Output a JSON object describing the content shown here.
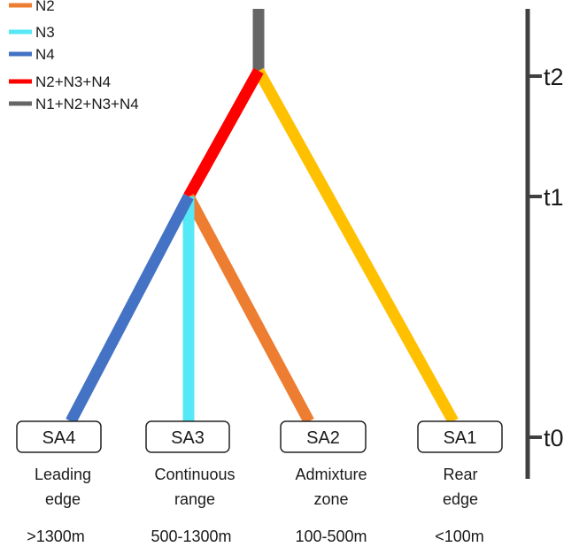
{
  "colors": {
    "N1": "#ffc000",
    "N2": "#ed7d31",
    "N3": "#55e8f7",
    "N4": "#4472c4",
    "N2_N3_N4": "#ff0000",
    "N1_N2_N3_N4": "#666666",
    "axis": "#404040"
  },
  "legend": [
    {
      "label": "N2",
      "color": "#ed7d31"
    },
    {
      "label": "N3",
      "color": "#55e8f7"
    },
    {
      "label": "N4",
      "color": "#4472c4"
    },
    {
      "label": "N2+N3+N4",
      "color": "#ff0000"
    },
    {
      "label": "N1+N2+N3+N4",
      "color": "#666666"
    }
  ],
  "time_axis": {
    "ticks": [
      "t2",
      "t1",
      "t0"
    ]
  },
  "samples": [
    {
      "id": "SA4",
      "line1": "Leading",
      "line2": "edge",
      "altitude": ">1300m"
    },
    {
      "id": "SA3",
      "line1": "Continuous",
      "line2": "range",
      "altitude": "500-1300m"
    },
    {
      "id": "SA2",
      "line1": "Admixture",
      "line2": "zone",
      "altitude": "100-500m"
    },
    {
      "id": "SA1",
      "line1": "Rear",
      "line2": "edge",
      "altitude": "<100m"
    }
  ]
}
